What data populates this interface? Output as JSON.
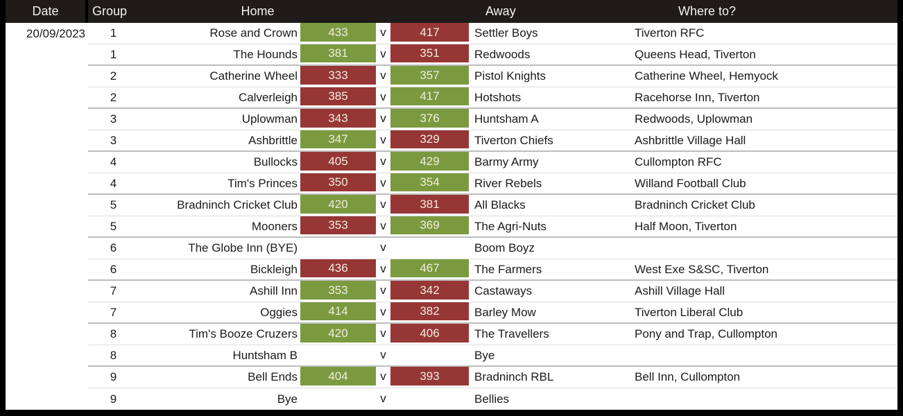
{
  "header": {
    "date": "Date",
    "group": "Group",
    "home": "Home",
    "away": "Away",
    "where_to": "Where to?"
  },
  "date_value": "20/09/2023",
  "versus_label": "v",
  "colors": {
    "win_green": "#7B9A40",
    "loss_red": "#963735",
    "header_bg": "#1E1B18",
    "header_text": "#F4F2EC",
    "frame_black": "#000000",
    "row_divider": "#DCDCDC",
    "group_divider": "#BDBDBD",
    "score_text": "#F0EDE0"
  },
  "rows": [
    {
      "group": 1,
      "home": "Rose and Crown",
      "home_score": 433,
      "away_score": 417,
      "away": "Settler Boys",
      "where_to": "Tiverton RFC"
    },
    {
      "group": 1,
      "home": "The Hounds",
      "home_score": 381,
      "away_score": 351,
      "away": "Redwoods",
      "where_to": "Queens Head, Tiverton"
    },
    {
      "group": 2,
      "home": "Catherine Wheel",
      "home_score": 333,
      "away_score": 357,
      "away": "Pistol Knights",
      "where_to": "Catherine Wheel, Hemyock"
    },
    {
      "group": 2,
      "home": "Calverleigh",
      "home_score": 385,
      "away_score": 417,
      "away": "Hotshots",
      "where_to": "Racehorse Inn, Tiverton"
    },
    {
      "group": 3,
      "home": "Uplowman",
      "home_score": 343,
      "away_score": 376,
      "away": "Huntsham A",
      "where_to": "Redwoods, Uplowman"
    },
    {
      "group": 3,
      "home": "Ashbrittle",
      "home_score": 347,
      "away_score": 329,
      "away": "Tiverton Chiefs",
      "where_to": "Ashbrittle Village Hall"
    },
    {
      "group": 4,
      "home": "Bullocks",
      "home_score": 405,
      "away_score": 429,
      "away": "Barmy Army",
      "where_to": "Cullompton RFC"
    },
    {
      "group": 4,
      "home": "Tim's Princes",
      "home_score": 350,
      "away_score": 354,
      "away": "River Rebels",
      "where_to": "Willand Football Club"
    },
    {
      "group": 5,
      "home": "Bradninch Cricket Club",
      "home_score": 420,
      "away_score": 381,
      "away": "All Blacks",
      "where_to": "Bradninch Cricket Club"
    },
    {
      "group": 5,
      "home": "Mooners",
      "home_score": 353,
      "away_score": 369,
      "away": "The Agri-Nuts",
      "where_to": "Half Moon, Tiverton"
    },
    {
      "group": 6,
      "home": "The Globe Inn (BYE)",
      "home_score": null,
      "away_score": null,
      "away": "Boom Boyz",
      "where_to": ""
    },
    {
      "group": 6,
      "home": "Bickleigh",
      "home_score": 436,
      "away_score": 467,
      "away": "The Farmers",
      "where_to": "West Exe S&SC, Tiverton"
    },
    {
      "group": 7,
      "home": "Ashill Inn",
      "home_score": 353,
      "away_score": 342,
      "away": "Castaways",
      "where_to": "Ashill Village Hall"
    },
    {
      "group": 7,
      "home": "Oggies",
      "home_score": 414,
      "away_score": 382,
      "away": "Barley Mow",
      "where_to": "Tiverton Liberal Club"
    },
    {
      "group": 8,
      "home": "Tim's Booze Cruzers",
      "home_score": 420,
      "away_score": 406,
      "away": "The Travellers",
      "where_to": "Pony and Trap, Cullompton"
    },
    {
      "group": 8,
      "home": "Huntsham B",
      "home_score": null,
      "away_score": null,
      "away": "Bye",
      "where_to": ""
    },
    {
      "group": 9,
      "home": "Bell Ends",
      "home_score": 404,
      "away_score": 393,
      "away": "Bradninch RBL",
      "where_to": "Bell Inn, Cullompton"
    },
    {
      "group": 9,
      "home": "Bye",
      "home_score": null,
      "away_score": null,
      "away": "Bellies",
      "where_to": ""
    }
  ]
}
